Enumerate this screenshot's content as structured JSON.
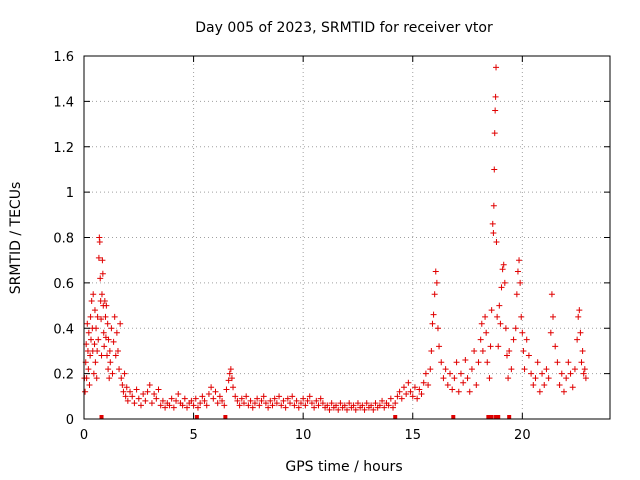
{
  "chart_data": {
    "type": "scatter",
    "title": "Day 005 of 2023, SRMTID for receiver vtor",
    "xlabel": "GPS time / hours",
    "ylabel": "SRMTID / TECUs",
    "xlim": [
      0,
      24
    ],
    "ylim": [
      0,
      1.6
    ],
    "xticks": [
      0,
      5,
      10,
      15,
      20
    ],
    "yticks": [
      0,
      0.2,
      0.4,
      0.6,
      0.8,
      1,
      1.2,
      1.4,
      1.6
    ],
    "xtick_labels": [
      "0",
      "5",
      "10",
      "15",
      "20"
    ],
    "ytick_labels": [
      "0",
      "0.2",
      "0.4",
      "0.6",
      "0.8",
      "1",
      "1.2",
      "1.4",
      "1.6"
    ],
    "grid": true,
    "marker": "+",
    "color": "#e00000",
    "series": [
      {
        "name": "SRMTID",
        "points": [
          [
            0.02,
            0.18
          ],
          [
            0.05,
            0.12
          ],
          [
            0.08,
            0.25
          ],
          [
            0.1,
            0.33
          ],
          [
            0.12,
            0.18
          ],
          [
            0.15,
            0.42
          ],
          [
            0.18,
            0.3
          ],
          [
            0.2,
            0.22
          ],
          [
            0.22,
            0.38
          ],
          [
            0.25,
            0.15
          ],
          [
            0.28,
            0.28
          ],
          [
            0.3,
            0.45
          ],
          [
            0.32,
            0.35
          ],
          [
            0.35,
            0.52
          ],
          [
            0.38,
            0.4
          ],
          [
            0.4,
            0.3
          ],
          [
            0.42,
            0.55
          ],
          [
            0.45,
            0.2
          ],
          [
            0.48,
            0.33
          ],
          [
            0.5,
            0.48
          ],
          [
            0.52,
            0.25
          ],
          [
            0.55,
            0.4
          ],
          [
            0.58,
            0.18
          ],
          [
            0.6,
            0.3
          ],
          [
            0.62,
            0.45
          ],
          [
            0.65,
            0.35
          ],
          [
            0.68,
            0.71
          ],
          [
            0.7,
            0.8
          ],
          [
            0.72,
            0.78
          ],
          [
            0.74,
            0.62
          ],
          [
            0.76,
            0.52
          ],
          [
            0.78,
            0.44
          ],
          [
            0.8,
            0.28
          ],
          [
            0.82,
            0.55
          ],
          [
            0.84,
            0.7
          ],
          [
            0.86,
            0.64
          ],
          [
            0.88,
            0.5
          ],
          [
            0.9,
            0.38
          ],
          [
            0.92,
            0.32
          ],
          [
            0.95,
            0.52
          ],
          [
            0.98,
            0.45
          ],
          [
            1.0,
            0.36
          ],
          [
            1.02,
            0.5
          ],
          [
            1.05,
            0.28
          ],
          [
            1.08,
            0.42
          ],
          [
            1.1,
            0.22
          ],
          [
            1.12,
            0.35
          ],
          [
            1.15,
            0.18
          ],
          [
            1.18,
            0.3
          ],
          [
            1.2,
            0.25
          ],
          [
            1.25,
            0.4
          ],
          [
            1.3,
            0.2
          ],
          [
            1.35,
            0.34
          ],
          [
            1.4,
            0.45
          ],
          [
            1.45,
            0.28
          ],
          [
            1.5,
            0.38
          ],
          [
            1.55,
            0.3
          ],
          [
            1.6,
            0.22
          ],
          [
            1.65,
            0.42
          ],
          [
            1.7,
            0.18
          ],
          [
            1.75,
            0.15
          ],
          [
            1.8,
            0.12
          ],
          [
            1.85,
            0.2
          ],
          [
            1.9,
            0.1
          ],
          [
            1.95,
            0.14
          ],
          [
            2.0,
            0.08
          ],
          [
            2.1,
            0.12
          ],
          [
            2.2,
            0.1
          ],
          [
            2.3,
            0.07
          ],
          [
            2.4,
            0.13
          ],
          [
            2.5,
            0.09
          ],
          [
            2.6,
            0.06
          ],
          [
            2.7,
            0.11
          ],
          [
            2.8,
            0.08
          ],
          [
            2.9,
            0.12
          ],
          [
            3.0,
            0.15
          ],
          [
            3.1,
            0.07
          ],
          [
            3.2,
            0.11
          ],
          [
            3.3,
            0.09
          ],
          [
            3.4,
            0.13
          ],
          [
            3.5,
            0.06
          ],
          [
            3.6,
            0.08
          ],
          [
            3.7,
            0.05
          ],
          [
            3.8,
            0.07
          ],
          [
            3.9,
            0.06
          ],
          [
            4.0,
            0.09
          ],
          [
            4.1,
            0.05
          ],
          [
            4.2,
            0.08
          ],
          [
            4.3,
            0.11
          ],
          [
            4.4,
            0.07
          ],
          [
            4.5,
            0.06
          ],
          [
            4.6,
            0.09
          ],
          [
            4.7,
            0.05
          ],
          [
            4.8,
            0.07
          ],
          [
            4.9,
            0.08
          ],
          [
            5.0,
            0.06
          ],
          [
            5.1,
            0.09
          ],
          [
            5.2,
            0.05
          ],
          [
            5.3,
            0.07
          ],
          [
            5.4,
            0.1
          ],
          [
            5.5,
            0.08
          ],
          [
            5.6,
            0.06
          ],
          [
            5.7,
            0.11
          ],
          [
            5.8,
            0.14
          ],
          [
            5.9,
            0.09
          ],
          [
            6.0,
            0.12
          ],
          [
            6.1,
            0.07
          ],
          [
            6.2,
            0.1
          ],
          [
            6.3,
            0.08
          ],
          [
            6.4,
            0.06
          ],
          [
            6.5,
            0.13
          ],
          [
            6.6,
            0.17
          ],
          [
            6.65,
            0.2
          ],
          [
            6.7,
            0.22
          ],
          [
            6.75,
            0.18
          ],
          [
            6.8,
            0.14
          ],
          [
            6.9,
            0.1
          ],
          [
            7.0,
            0.08
          ],
          [
            7.1,
            0.06
          ],
          [
            7.2,
            0.09
          ],
          [
            7.3,
            0.07
          ],
          [
            7.4,
            0.1
          ],
          [
            7.5,
            0.06
          ],
          [
            7.6,
            0.08
          ],
          [
            7.7,
            0.05
          ],
          [
            7.8,
            0.07
          ],
          [
            7.9,
            0.09
          ],
          [
            8.0,
            0.06
          ],
          [
            8.1,
            0.08
          ],
          [
            8.2,
            0.1
          ],
          [
            8.3,
            0.07
          ],
          [
            8.4,
            0.05
          ],
          [
            8.5,
            0.08
          ],
          [
            8.6,
            0.06
          ],
          [
            8.7,
            0.09
          ],
          [
            8.8,
            0.07
          ],
          [
            8.9,
            0.1
          ],
          [
            9.0,
            0.06
          ],
          [
            9.1,
            0.08
          ],
          [
            9.2,
            0.05
          ],
          [
            9.3,
            0.09
          ],
          [
            9.4,
            0.07
          ],
          [
            9.5,
            0.1
          ],
          [
            9.6,
            0.06
          ],
          [
            9.7,
            0.08
          ],
          [
            9.8,
            0.05
          ],
          [
            9.9,
            0.07
          ],
          [
            10.0,
            0.09
          ],
          [
            10.1,
            0.06
          ],
          [
            10.2,
            0.08
          ],
          [
            10.3,
            0.1
          ],
          [
            10.4,
            0.07
          ],
          [
            10.5,
            0.05
          ],
          [
            10.6,
            0.08
          ],
          [
            10.7,
            0.06
          ],
          [
            10.8,
            0.09
          ],
          [
            10.9,
            0.07
          ],
          [
            11.0,
            0.05
          ],
          [
            11.1,
            0.06
          ],
          [
            11.2,
            0.04
          ],
          [
            11.3,
            0.07
          ],
          [
            11.4,
            0.05
          ],
          [
            11.5,
            0.06
          ],
          [
            11.6,
            0.04
          ],
          [
            11.7,
            0.07
          ],
          [
            11.8,
            0.05
          ],
          [
            11.9,
            0.06
          ],
          [
            12.0,
            0.04
          ],
          [
            12.1,
            0.07
          ],
          [
            12.2,
            0.05
          ],
          [
            12.3,
            0.06
          ],
          [
            12.4,
            0.04
          ],
          [
            12.5,
            0.07
          ],
          [
            12.6,
            0.05
          ],
          [
            12.7,
            0.06
          ],
          [
            12.8,
            0.04
          ],
          [
            12.9,
            0.07
          ],
          [
            13.0,
            0.05
          ],
          [
            13.1,
            0.06
          ],
          [
            13.2,
            0.04
          ],
          [
            13.3,
            0.07
          ],
          [
            13.4,
            0.05
          ],
          [
            13.5,
            0.06
          ],
          [
            13.6,
            0.08
          ],
          [
            13.7,
            0.05
          ],
          [
            13.8,
            0.07
          ],
          [
            13.9,
            0.06
          ],
          [
            14.0,
            0.09
          ],
          [
            14.1,
            0.05
          ],
          [
            14.2,
            0.07
          ],
          [
            14.3,
            0.1
          ],
          [
            14.4,
            0.12
          ],
          [
            14.5,
            0.09
          ],
          [
            14.6,
            0.14
          ],
          [
            14.7,
            0.11
          ],
          [
            14.8,
            0.16
          ],
          [
            14.9,
            0.12
          ],
          [
            15.0,
            0.1
          ],
          [
            15.1,
            0.14
          ],
          [
            15.2,
            0.09
          ],
          [
            15.3,
            0.13
          ],
          [
            15.4,
            0.11
          ],
          [
            15.5,
            0.16
          ],
          [
            15.6,
            0.2
          ],
          [
            15.7,
            0.15
          ],
          [
            15.8,
            0.22
          ],
          [
            15.85,
            0.3
          ],
          [
            15.9,
            0.42
          ],
          [
            15.95,
            0.46
          ],
          [
            16.0,
            0.55
          ],
          [
            16.05,
            0.65
          ],
          [
            16.1,
            0.6
          ],
          [
            16.15,
            0.4
          ],
          [
            16.2,
            0.32
          ],
          [
            16.3,
            0.25
          ],
          [
            16.4,
            0.18
          ],
          [
            16.5,
            0.22
          ],
          [
            16.6,
            0.15
          ],
          [
            16.7,
            0.2
          ],
          [
            16.8,
            0.13
          ],
          [
            16.9,
            0.18
          ],
          [
            17.0,
            0.25
          ],
          [
            17.1,
            0.12
          ],
          [
            17.2,
            0.2
          ],
          [
            17.3,
            0.16
          ],
          [
            17.4,
            0.26
          ],
          [
            17.5,
            0.18
          ],
          [
            17.6,
            0.12
          ],
          [
            17.7,
            0.22
          ],
          [
            17.8,
            0.3
          ],
          [
            17.9,
            0.15
          ],
          [
            18.0,
            0.25
          ],
          [
            18.1,
            0.35
          ],
          [
            18.15,
            0.42
          ],
          [
            18.2,
            0.3
          ],
          [
            18.3,
            0.45
          ],
          [
            18.35,
            0.38
          ],
          [
            18.4,
            0.25
          ],
          [
            18.5,
            0.18
          ],
          [
            18.55,
            0.32
          ],
          [
            18.6,
            0.48
          ],
          [
            18.65,
            0.86
          ],
          [
            18.68,
            0.82
          ],
          [
            18.7,
            0.94
          ],
          [
            18.72,
            1.1
          ],
          [
            18.74,
            1.26
          ],
          [
            18.76,
            1.36
          ],
          [
            18.78,
            1.42
          ],
          [
            18.8,
            1.55
          ],
          [
            18.82,
            0.78
          ],
          [
            18.85,
            0.45
          ],
          [
            18.9,
            0.32
          ],
          [
            18.95,
            0.5
          ],
          [
            19.0,
            0.42
          ],
          [
            19.05,
            0.58
          ],
          [
            19.1,
            0.66
          ],
          [
            19.15,
            0.68
          ],
          [
            19.2,
            0.6
          ],
          [
            19.25,
            0.4
          ],
          [
            19.3,
            0.28
          ],
          [
            19.35,
            0.18
          ],
          [
            19.4,
            0.3
          ],
          [
            19.5,
            0.22
          ],
          [
            19.6,
            0.35
          ],
          [
            19.7,
            0.4
          ],
          [
            19.75,
            0.55
          ],
          [
            19.8,
            0.65
          ],
          [
            19.85,
            0.7
          ],
          [
            19.9,
            0.6
          ],
          [
            19.95,
            0.45
          ],
          [
            20.0,
            0.38
          ],
          [
            20.05,
            0.3
          ],
          [
            20.1,
            0.22
          ],
          [
            20.2,
            0.35
          ],
          [
            20.3,
            0.28
          ],
          [
            20.4,
            0.2
          ],
          [
            20.5,
            0.15
          ],
          [
            20.6,
            0.18
          ],
          [
            20.7,
            0.25
          ],
          [
            20.8,
            0.12
          ],
          [
            20.9,
            0.2
          ],
          [
            21.0,
            0.15
          ],
          [
            21.1,
            0.22
          ],
          [
            21.2,
            0.18
          ],
          [
            21.3,
            0.38
          ],
          [
            21.35,
            0.55
          ],
          [
            21.4,
            0.45
          ],
          [
            21.5,
            0.32
          ],
          [
            21.6,
            0.25
          ],
          [
            21.7,
            0.15
          ],
          [
            21.8,
            0.2
          ],
          [
            21.9,
            0.12
          ],
          [
            22.0,
            0.18
          ],
          [
            22.1,
            0.25
          ],
          [
            22.2,
            0.2
          ],
          [
            22.3,
            0.14
          ],
          [
            22.4,
            0.22
          ],
          [
            22.5,
            0.35
          ],
          [
            22.55,
            0.45
          ],
          [
            22.6,
            0.48
          ],
          [
            22.65,
            0.38
          ],
          [
            22.7,
            0.25
          ],
          [
            22.75,
            0.3
          ],
          [
            22.8,
            0.2
          ],
          [
            22.85,
            0.22
          ],
          [
            22.9,
            0.18
          ]
        ]
      }
    ],
    "flag_x": [
      0.8,
      5.15,
      6.45,
      14.2,
      16.85,
      18.45,
      18.6,
      18.8,
      18.9,
      19.4
    ],
    "flag_value": 0
  }
}
